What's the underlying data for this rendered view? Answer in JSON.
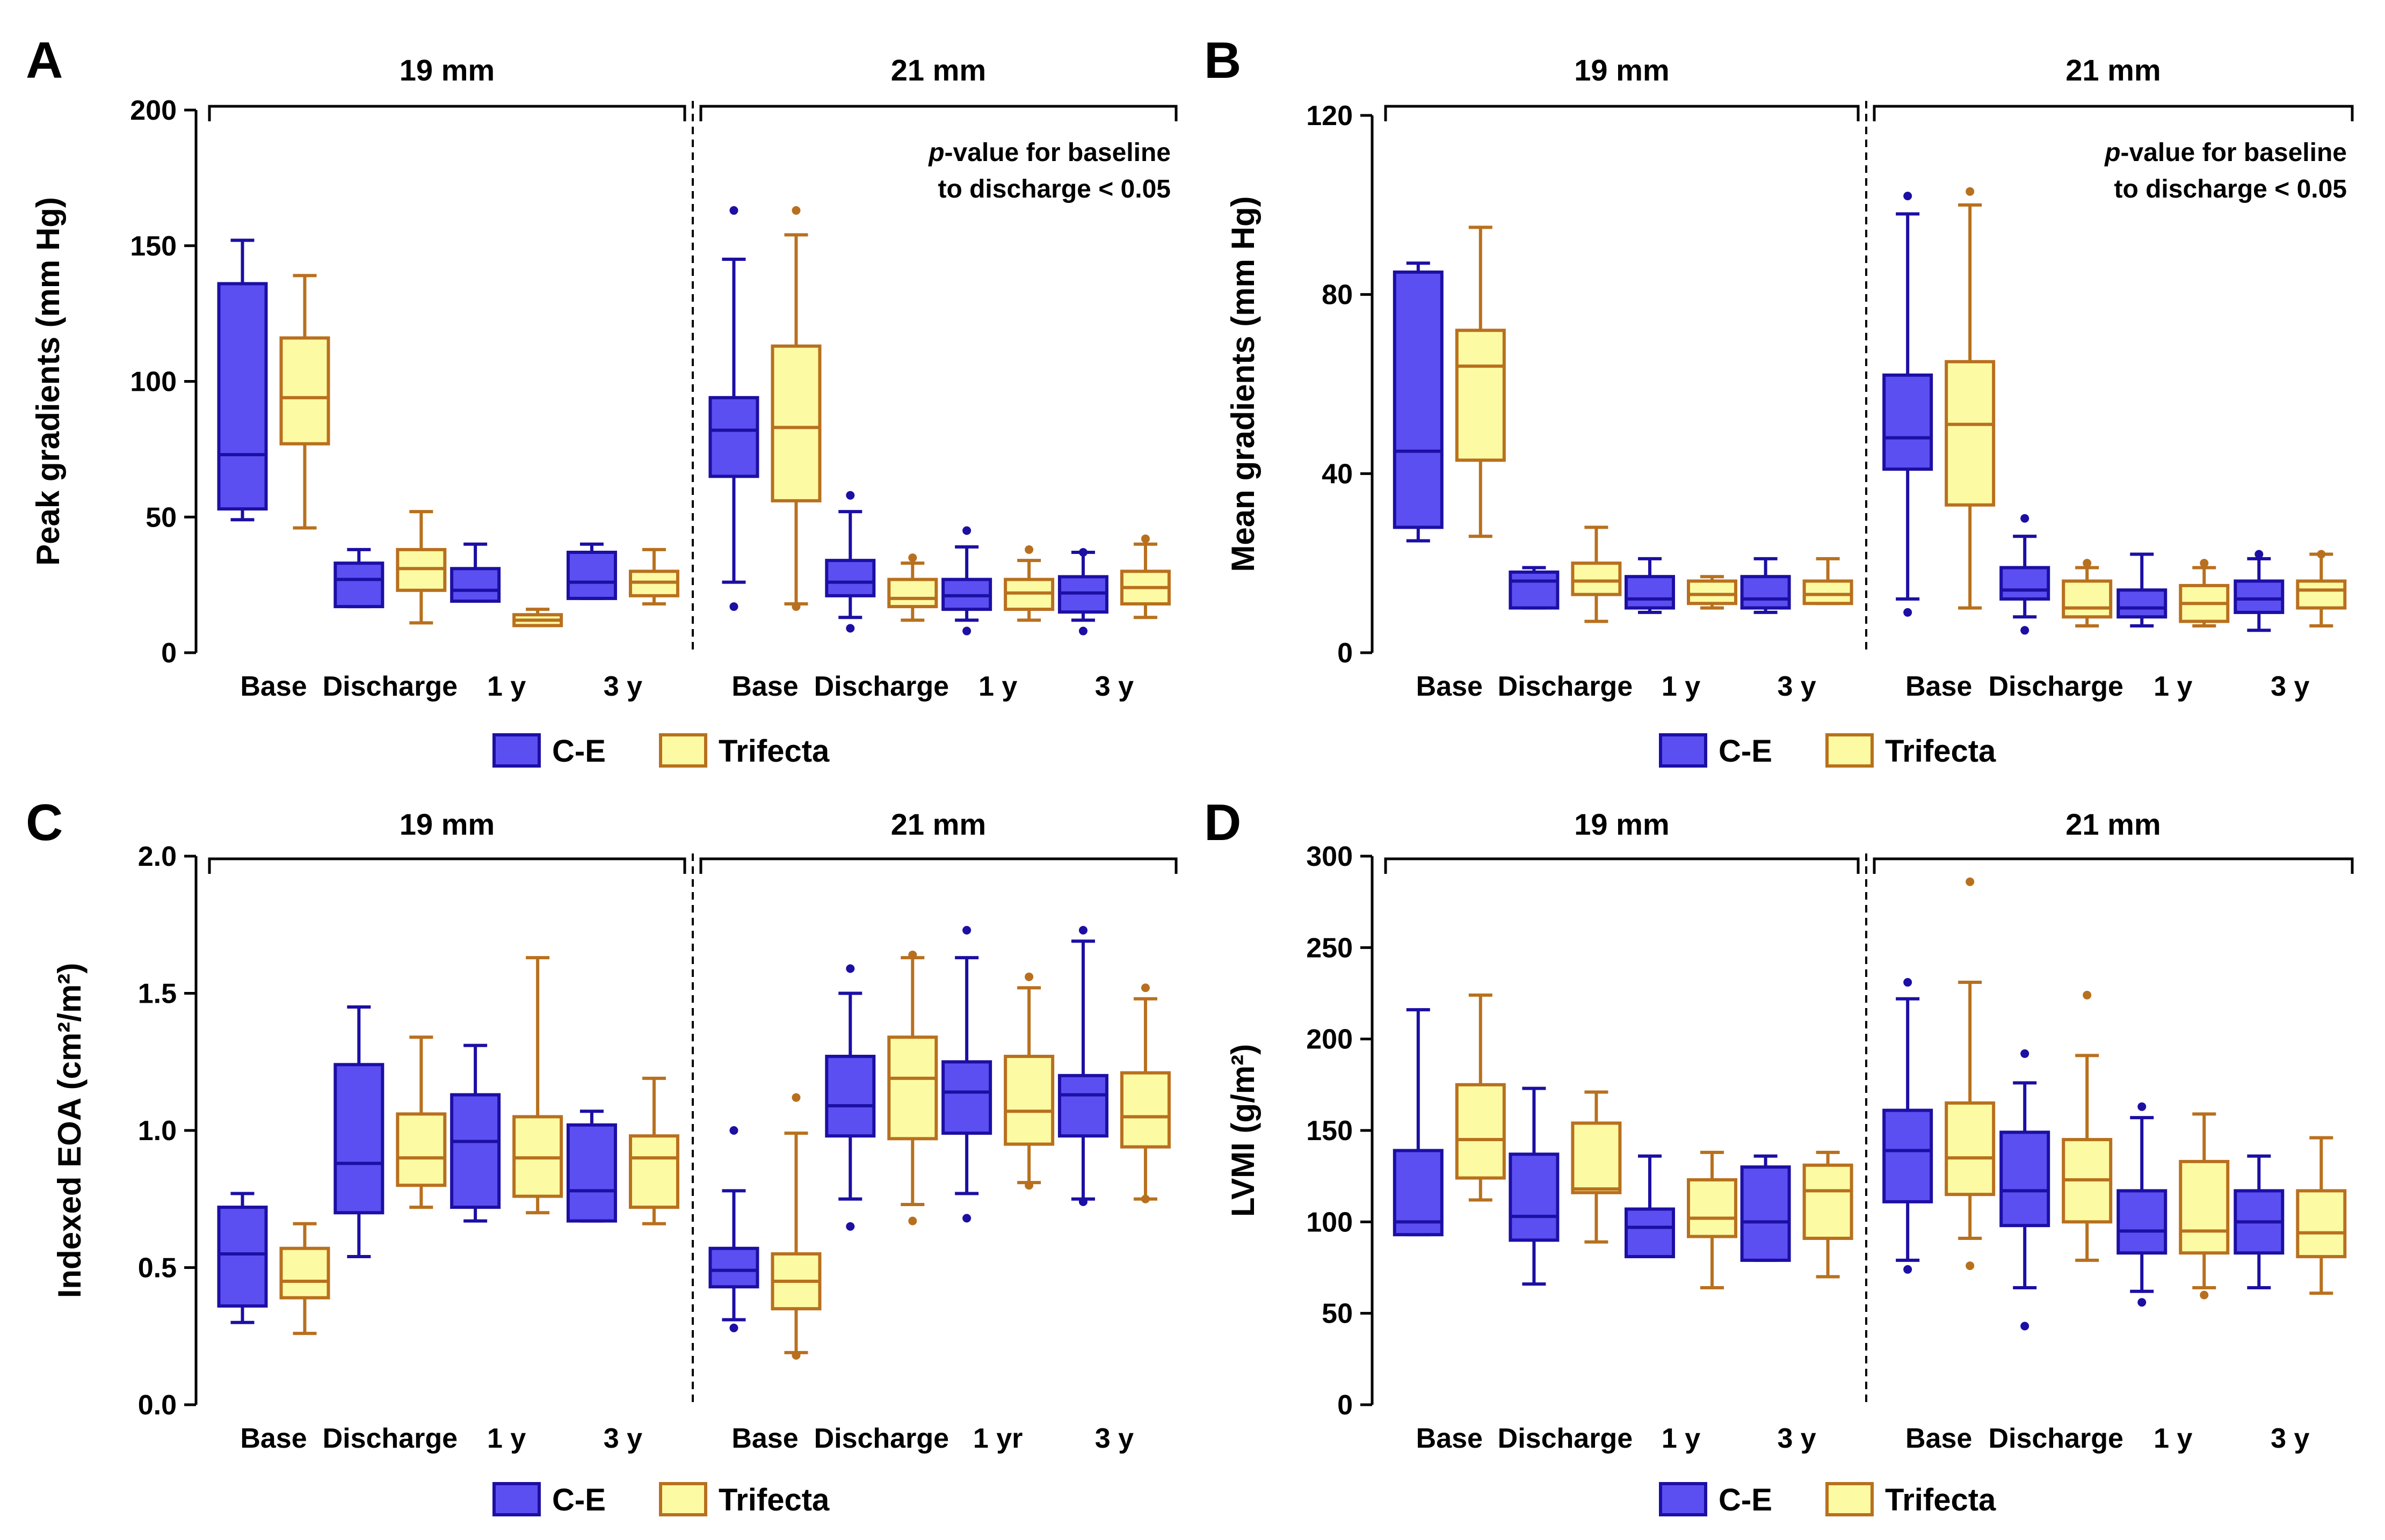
{
  "colors": {
    "ce_fill": "#5b4ff2",
    "ce_stroke": "#1c0fa3",
    "tri_fill": "#fdfaa4",
    "tri_stroke": "#b8701e"
  },
  "legend": {
    "ce": "C-E",
    "trifecta": "Trifecta"
  },
  "chart_data": [
    {
      "type": "box",
      "panel": "A",
      "ylabel": "Peak gradients (mm Hg)",
      "ylim": [
        0,
        200
      ],
      "yticks": [
        "0",
        "50",
        "100",
        "150",
        "200"
      ],
      "ytick_values": [
        0,
        50,
        100,
        150,
        200
      ],
      "groups": [
        {
          "label": "19 mm",
          "categories": [
            "Base",
            "Discharge",
            "1 y",
            "3 y"
          ]
        },
        {
          "label": "21 mm",
          "categories": [
            "Base",
            "Discharge",
            "1 y",
            "3 y"
          ]
        }
      ],
      "note": [
        "p-value for baseline",
        "to discharge < 0.05"
      ],
      "series": [
        {
          "name": "C-E",
          "boxes": [
            {
              "min": 49,
              "q1": 53,
              "median": 73,
              "q3": 136,
              "max": 152,
              "outliers": []
            },
            {
              "min": 17,
              "q1": 17,
              "median": 27,
              "q3": 33,
              "max": 38,
              "outliers": []
            },
            {
              "min": 19,
              "q1": 19,
              "median": 23,
              "q3": 31,
              "max": 40,
              "outliers": []
            },
            {
              "min": 20,
              "q1": 20,
              "median": 26,
              "q3": 37,
              "max": 40,
              "outliers": []
            },
            {
              "min": 26,
              "q1": 65,
              "median": 82,
              "q3": 94,
              "max": 145,
              "outliers": [
                163,
                17
              ]
            },
            {
              "min": 13,
              "q1": 21,
              "median": 26,
              "q3": 34,
              "max": 52,
              "outliers": [
                58,
                9
              ]
            },
            {
              "min": 12,
              "q1": 16,
              "median": 21,
              "q3": 27,
              "max": 39,
              "outliers": [
                45,
                8
              ]
            },
            {
              "min": 12,
              "q1": 15,
              "median": 22,
              "q3": 28,
              "max": 37,
              "outliers": [
                37,
                8
              ]
            }
          ]
        },
        {
          "name": "Trifecta",
          "boxes": [
            {
              "min": 46,
              "q1": 77,
              "median": 94,
              "q3": 116,
              "max": 139,
              "outliers": []
            },
            {
              "min": 11,
              "q1": 23,
              "median": 31,
              "q3": 38,
              "max": 52,
              "outliers": []
            },
            {
              "min": 10,
              "q1": 10,
              "median": 12,
              "q3": 14,
              "max": 16,
              "outliers": []
            },
            {
              "min": 18,
              "q1": 21,
              "median": 26,
              "q3": 30,
              "max": 38,
              "outliers": []
            },
            {
              "min": 18,
              "q1": 56,
              "median": 83,
              "q3": 113,
              "max": 154,
              "outliers": [
                163,
                17
              ]
            },
            {
              "min": 12,
              "q1": 17,
              "median": 20,
              "q3": 27,
              "max": 33,
              "outliers": [
                35
              ]
            },
            {
              "min": 12,
              "q1": 16,
              "median": 22,
              "q3": 27,
              "max": 34,
              "outliers": [
                38
              ]
            },
            {
              "min": 13,
              "q1": 18,
              "median": 24,
              "q3": 30,
              "max": 40,
              "outliers": [
                42
              ]
            }
          ]
        }
      ]
    },
    {
      "type": "box",
      "panel": "B",
      "ylabel": "Mean gradients (mm Hg)",
      "ylim": [
        0,
        120
      ],
      "yticks": [
        "0",
        "40",
        "80",
        "120"
      ],
      "ytick_values": [
        0,
        40,
        80,
        120
      ],
      "groups": [
        {
          "label": "19 mm",
          "categories": [
            "Base",
            "Discharge",
            "1 y",
            "3 y"
          ]
        },
        {
          "label": "21 mm",
          "categories": [
            "Base",
            "Discharge",
            "1 y",
            "3 y"
          ]
        }
      ],
      "note": [
        "p-value for baseline",
        "to discharge < 0.05"
      ],
      "series": [
        {
          "name": "C-E",
          "boxes": [
            {
              "min": 25,
              "q1": 28,
              "median": 45,
              "q3": 85,
              "max": 87,
              "outliers": []
            },
            {
              "min": 10,
              "q1": 10,
              "median": 16,
              "q3": 18,
              "max": 19,
              "outliers": []
            },
            {
              "min": 9,
              "q1": 10,
              "median": 12,
              "q3": 17,
              "max": 21,
              "outliers": []
            },
            {
              "min": 9,
              "q1": 10,
              "median": 12,
              "q3": 17,
              "max": 21,
              "outliers": []
            },
            {
              "min": 12,
              "q1": 41,
              "median": 48,
              "q3": 62,
              "max": 98,
              "outliers": [
                102,
                9
              ]
            },
            {
              "min": 8,
              "q1": 12,
              "median": 14,
              "q3": 19,
              "max": 26,
              "outliers": [
                30,
                5
              ]
            },
            {
              "min": 6,
              "q1": 8,
              "median": 10,
              "q3": 14,
              "max": 22,
              "outliers": []
            },
            {
              "min": 5,
              "q1": 9,
              "median": 12,
              "q3": 16,
              "max": 21,
              "outliers": [
                22
              ]
            }
          ]
        },
        {
          "name": "Trifecta",
          "boxes": [
            {
              "min": 26,
              "q1": 43,
              "median": 64,
              "q3": 72,
              "max": 95,
              "outliers": []
            },
            {
              "min": 7,
              "q1": 13,
              "median": 16,
              "q3": 20,
              "max": 28,
              "outliers": []
            },
            {
              "min": 10,
              "q1": 11,
              "median": 13,
              "q3": 16,
              "max": 17,
              "outliers": []
            },
            {
              "min": 11,
              "q1": 11,
              "median": 13,
              "q3": 16,
              "max": 21,
              "outliers": []
            },
            {
              "min": 10,
              "q1": 33,
              "median": 51,
              "q3": 65,
              "max": 100,
              "outliers": [
                103
              ]
            },
            {
              "min": 6,
              "q1": 8,
              "median": 10,
              "q3": 16,
              "max": 19,
              "outliers": [
                20
              ]
            },
            {
              "min": 6,
              "q1": 7,
              "median": 11,
              "q3": 15,
              "max": 19,
              "outliers": [
                20
              ]
            },
            {
              "min": 6,
              "q1": 10,
              "median": 14,
              "q3": 16,
              "max": 22,
              "outliers": [
                22
              ]
            }
          ]
        }
      ]
    },
    {
      "type": "box",
      "panel": "C",
      "ylabel": "Indexed EOA (cm²/m²)",
      "ylim": [
        0,
        2.0
      ],
      "yticks": [
        "0.0",
        "0.5",
        "1.0",
        "1.5",
        "2.0"
      ],
      "ytick_values": [
        0,
        0.5,
        1.0,
        1.5,
        2.0
      ],
      "groups": [
        {
          "label": "19 mm",
          "categories": [
            "Base",
            "Discharge",
            "1 y",
            "3 y"
          ]
        },
        {
          "label": "21 mm",
          "categories": [
            "Base",
            "Discharge",
            "1 yr",
            "3 y"
          ]
        }
      ],
      "series": [
        {
          "name": "C-E",
          "boxes": [
            {
              "min": 0.3,
              "q1": 0.36,
              "median": 0.55,
              "q3": 0.72,
              "max": 0.77,
              "outliers": []
            },
            {
              "min": 0.54,
              "q1": 0.7,
              "median": 0.88,
              "q3": 1.24,
              "max": 1.45,
              "outliers": []
            },
            {
              "min": 0.67,
              "q1": 0.72,
              "median": 0.96,
              "q3": 1.13,
              "max": 1.31,
              "outliers": []
            },
            {
              "min": 0.67,
              "q1": 0.67,
              "median": 0.78,
              "q3": 1.02,
              "max": 1.07,
              "outliers": []
            },
            {
              "min": 0.31,
              "q1": 0.43,
              "median": 0.49,
              "q3": 0.57,
              "max": 0.78,
              "outliers": [
                1.0,
                0.28
              ]
            },
            {
              "min": 0.75,
              "q1": 0.98,
              "median": 1.09,
              "q3": 1.27,
              "max": 1.5,
              "outliers": [
                1.59,
                0.65
              ]
            },
            {
              "min": 0.77,
              "q1": 0.99,
              "median": 1.14,
              "q3": 1.25,
              "max": 1.63,
              "outliers": [
                1.73,
                0.68
              ]
            },
            {
              "min": 0.75,
              "q1": 0.98,
              "median": 1.13,
              "q3": 1.2,
              "max": 1.69,
              "outliers": [
                1.73,
                0.74
              ]
            }
          ]
        },
        {
          "name": "Trifecta",
          "boxes": [
            {
              "min": 0.26,
              "q1": 0.39,
              "median": 0.45,
              "q3": 0.57,
              "max": 0.66,
              "outliers": []
            },
            {
              "min": 0.72,
              "q1": 0.8,
              "median": 0.9,
              "q3": 1.06,
              "max": 1.34,
              "outliers": []
            },
            {
              "min": 0.7,
              "q1": 0.76,
              "median": 0.9,
              "q3": 1.05,
              "max": 1.63,
              "outliers": []
            },
            {
              "min": 0.66,
              "q1": 0.72,
              "median": 0.9,
              "q3": 0.98,
              "max": 1.19,
              "outliers": []
            },
            {
              "min": 0.19,
              "q1": 0.35,
              "median": 0.45,
              "q3": 0.55,
              "max": 0.99,
              "outliers": [
                1.12,
                0.18
              ]
            },
            {
              "min": 0.73,
              "q1": 0.97,
              "median": 1.19,
              "q3": 1.34,
              "max": 1.63,
              "outliers": [
                1.64,
                0.67
              ]
            },
            {
              "min": 0.81,
              "q1": 0.95,
              "median": 1.07,
              "q3": 1.27,
              "max": 1.52,
              "outliers": [
                1.56,
                0.8
              ]
            },
            {
              "min": 0.75,
              "q1": 0.94,
              "median": 1.05,
              "q3": 1.21,
              "max": 1.48,
              "outliers": [
                1.52,
                0.75
              ]
            }
          ]
        }
      ]
    },
    {
      "type": "box",
      "panel": "D",
      "ylabel": "LVMI (g/m²)",
      "ylim": [
        0,
        300
      ],
      "yticks": [
        "0",
        "50",
        "100",
        "150",
        "200",
        "250",
        "300"
      ],
      "ytick_values": [
        0,
        50,
        100,
        150,
        200,
        250,
        300
      ],
      "groups": [
        {
          "label": "19 mm",
          "categories": [
            "Base",
            "Discharge",
            "1 y",
            "3 y"
          ]
        },
        {
          "label": "21 mm",
          "categories": [
            "Base",
            "Discharge",
            "1 y",
            "3 y"
          ]
        }
      ],
      "series": [
        {
          "name": "C-E",
          "boxes": [
            {
              "min": 93,
              "q1": 93,
              "median": 100,
              "q3": 139,
              "max": 216,
              "outliers": []
            },
            {
              "min": 66,
              "q1": 90,
              "median": 103,
              "q3": 137,
              "max": 173,
              "outliers": []
            },
            {
              "min": 81,
              "q1": 81,
              "median": 97,
              "q3": 107,
              "max": 136,
              "outliers": []
            },
            {
              "min": 79,
              "q1": 79,
              "median": 100,
              "q3": 130,
              "max": 136,
              "outliers": []
            },
            {
              "min": 79,
              "q1": 111,
              "median": 139,
              "q3": 161,
              "max": 222,
              "outliers": [
                231,
                74
              ]
            },
            {
              "min": 64,
              "q1": 98,
              "median": 117,
              "q3": 149,
              "max": 176,
              "outliers": [
                192,
                43
              ]
            },
            {
              "min": 62,
              "q1": 83,
              "median": 95,
              "q3": 117,
              "max": 157,
              "outliers": [
                163,
                56
              ]
            },
            {
              "min": 64,
              "q1": 83,
              "median": 100,
              "q3": 117,
              "max": 136,
              "outliers": []
            }
          ]
        },
        {
          "name": "Trifecta",
          "boxes": [
            {
              "min": 112,
              "q1": 124,
              "median": 145,
              "q3": 175,
              "max": 224,
              "outliers": []
            },
            {
              "min": 89,
              "q1": 116,
              "median": 118,
              "q3": 154,
              "max": 171,
              "outliers": []
            },
            {
              "min": 64,
              "q1": 92,
              "median": 102,
              "q3": 123,
              "max": 138,
              "outliers": []
            },
            {
              "min": 70,
              "q1": 91,
              "median": 117,
              "q3": 131,
              "max": 138,
              "outliers": []
            },
            {
              "min": 91,
              "q1": 115,
              "median": 135,
              "q3": 165,
              "max": 231,
              "outliers": [
                286,
                76
              ]
            },
            {
              "min": 79,
              "q1": 100,
              "median": 123,
              "q3": 145,
              "max": 191,
              "outliers": [
                224
              ]
            },
            {
              "min": 64,
              "q1": 83,
              "median": 95,
              "q3": 133,
              "max": 159,
              "outliers": [
                60
              ]
            },
            {
              "min": 61,
              "q1": 81,
              "median": 94,
              "q3": 117,
              "max": 146,
              "outliers": []
            }
          ]
        }
      ]
    }
  ]
}
